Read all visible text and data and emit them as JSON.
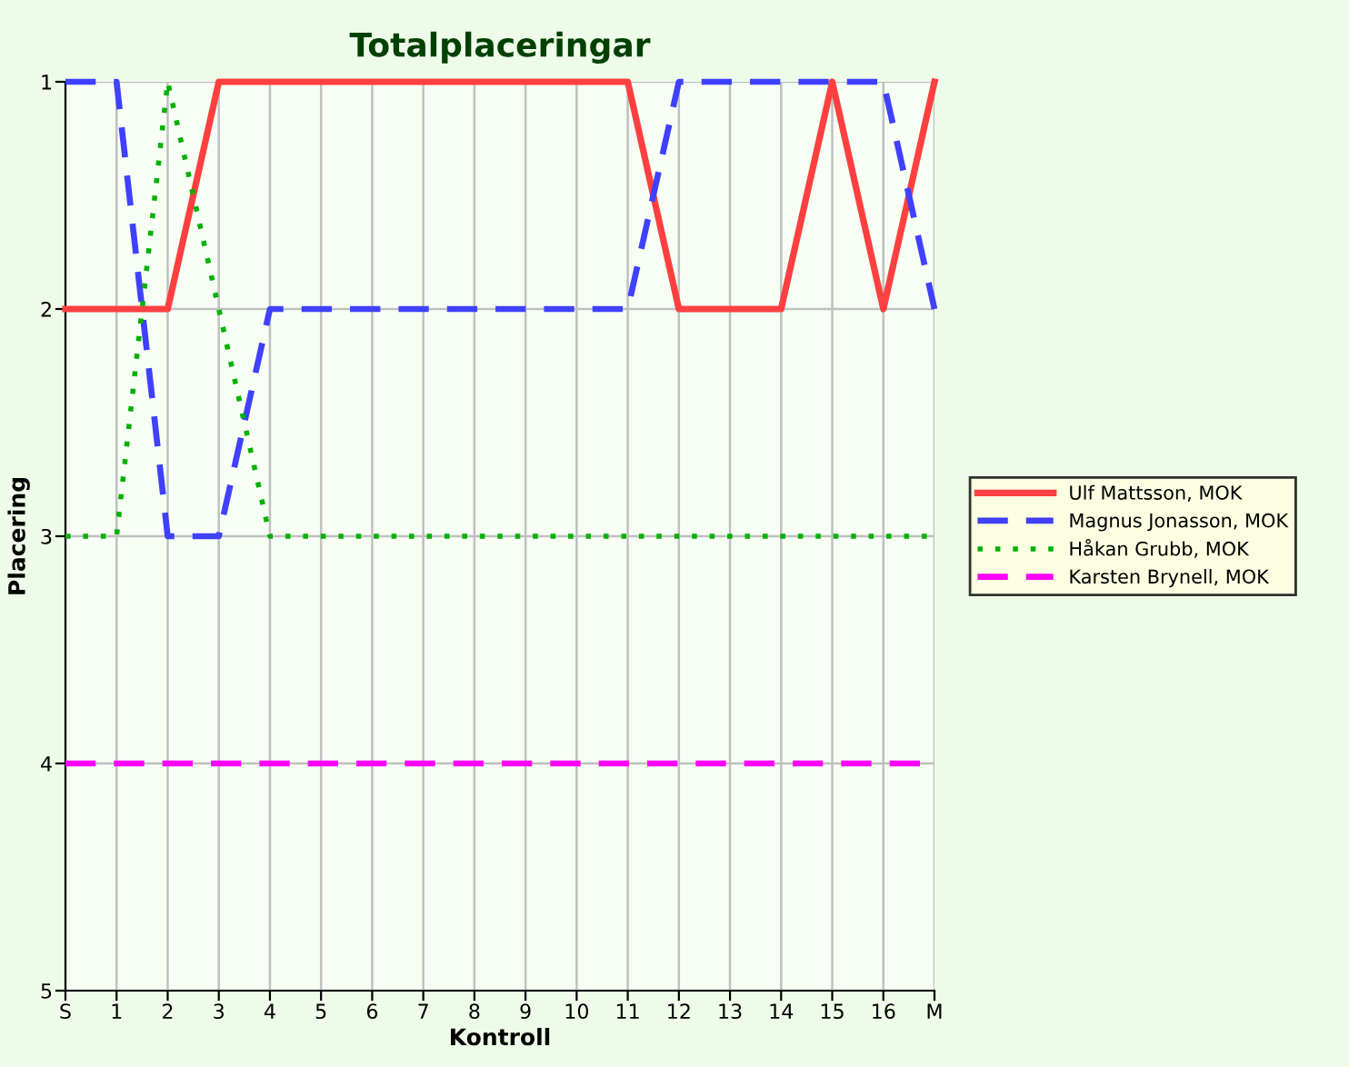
{
  "chart_data": {
    "type": "line",
    "title": "Totalplaceringar",
    "xlabel": "Kontroll",
    "ylabel": "Placering",
    "categories": [
      "S",
      "1",
      "2",
      "3",
      "4",
      "5",
      "6",
      "7",
      "8",
      "9",
      "10",
      "11",
      "12",
      "13",
      "14",
      "15",
      "16",
      "M"
    ],
    "ylim": [
      5,
      1
    ],
    "yticks": [
      1,
      2,
      3,
      4,
      5
    ],
    "grid": true,
    "legend": "right",
    "series": [
      {
        "name": "Ulf Mattsson, MOK",
        "color": "#ff4040",
        "line_style": "solid",
        "values": [
          2,
          2,
          2,
          1,
          1,
          1,
          1,
          1,
          1,
          1,
          1,
          1,
          2,
          2,
          2,
          1,
          2,
          1
        ]
      },
      {
        "name": "Magnus Jonasson, MOK",
        "color": "#4040ff",
        "line_style": "dashed",
        "values": [
          1,
          1,
          3,
          3,
          2,
          2,
          2,
          2,
          2,
          2,
          2,
          2,
          1,
          1,
          1,
          1,
          1,
          2
        ]
      },
      {
        "name": "Håkan Grubb, MOK",
        "color": "#00b000",
        "line_style": "dotted",
        "values": [
          3,
          3,
          1,
          2,
          3,
          3,
          3,
          3,
          3,
          3,
          3,
          3,
          3,
          3,
          3,
          3,
          3,
          3
        ]
      },
      {
        "name": "Karsten Brynell, MOK",
        "color": "#ff00ff",
        "line_style": "dashed",
        "values": [
          4,
          4,
          4,
          4,
          4,
          4,
          4,
          4,
          4,
          4,
          4,
          4,
          4,
          4,
          4,
          4,
          4,
          4
        ]
      }
    ]
  }
}
